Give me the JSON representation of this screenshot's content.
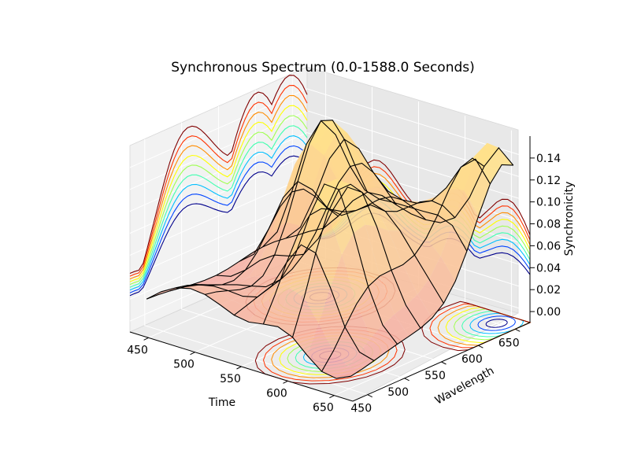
{
  "chart_data": {
    "type": "surface3d",
    "title": "Synchronous Spectrum (0.0-1588.0 Seconds)",
    "xlabel": "Time",
    "ylabel": "Wavelength",
    "zlabel": "Synchronicity",
    "xlim": [
      430,
      670
    ],
    "ylim": [
      430,
      670
    ],
    "zlim": [
      -0.01,
      0.16
    ],
    "x_ticks": [
      "450",
      "500",
      "550",
      "600",
      "650"
    ],
    "y_ticks": [
      "450",
      "500",
      "550",
      "600",
      "650"
    ],
    "z_ticks": [
      "0.00",
      "0.02",
      "0.04",
      "0.06",
      "0.08",
      "0.10",
      "0.12",
      "0.14"
    ],
    "grid": true,
    "surface_peaks": [
      {
        "time": 500,
        "wavelength": 600,
        "synchronicity": 0.155
      },
      {
        "time": 590,
        "wavelength": 500,
        "synchronicity": 0.145
      },
      {
        "time": 650,
        "wavelength": 650,
        "synchronicity": 0.14
      }
    ],
    "surface_colors": [
      "#f4a7a7",
      "#ffe08a"
    ],
    "contour_colors": [
      "#00008b",
      "#0044ff",
      "#00bfff",
      "#40ffb0",
      "#a0ff50",
      "#ffff00",
      "#ff8c00",
      "#ff3300",
      "#800000"
    ]
  }
}
